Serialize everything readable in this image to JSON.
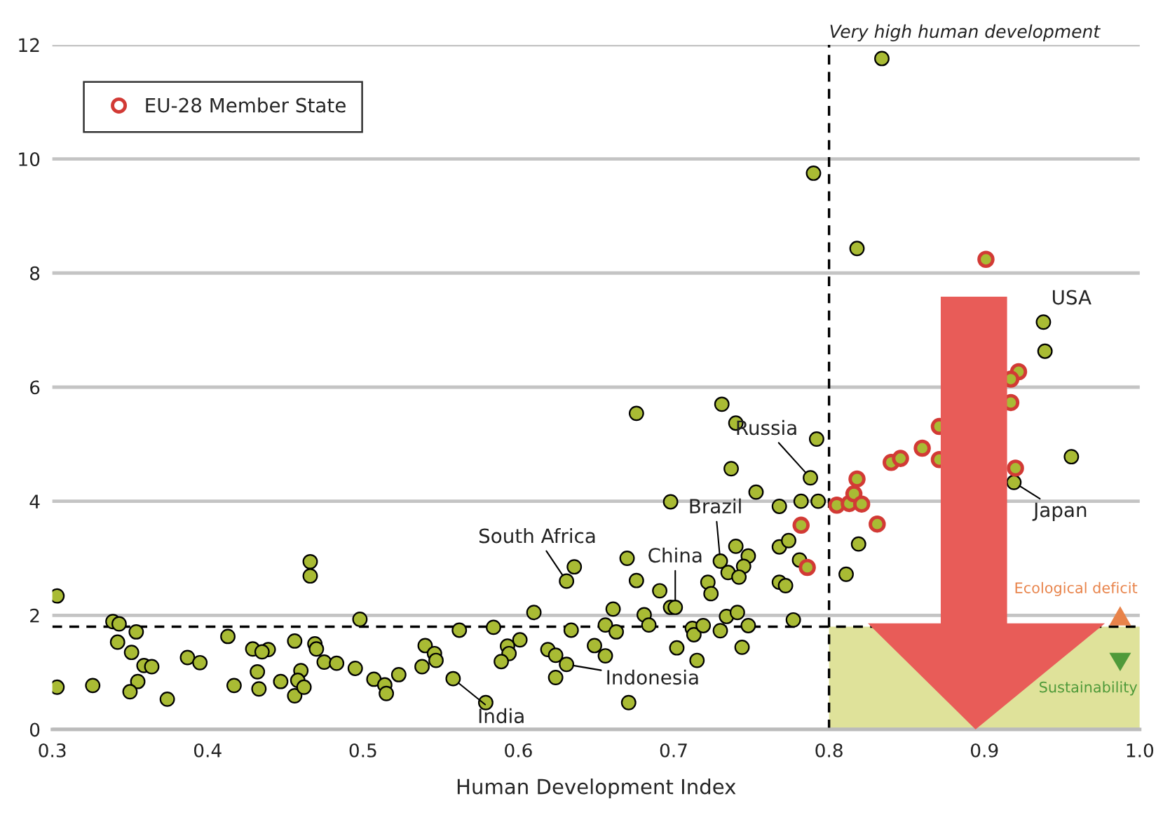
{
  "chart_data": {
    "type": "scatter",
    "xlabel": "Human Development Index",
    "xlim": [
      0.3,
      1.0
    ],
    "xticks": [
      0.3,
      0.4,
      0.5,
      0.6,
      0.7,
      0.8,
      0.9,
      {
        "value": 1.0,
        "label": "1.0"
      }
    ],
    "ylim": [
      0,
      12
    ],
    "yticks": [
      0,
      2,
      4,
      6,
      8,
      10,
      12
    ],
    "grid": "y",
    "legend": "top left",
    "marker": "circle",
    "series": [
      {
        "color": "#a9bb34",
        "x": [
          0.303,
          0.303,
          0.326,
          0.339,
          0.343,
          0.342,
          0.354,
          0.351,
          0.355,
          0.35,
          0.359,
          0.364,
          0.374,
          0.387,
          0.395,
          0.413,
          0.417,
          0.429,
          0.439,
          0.435,
          0.432,
          0.433,
          0.447,
          0.456,
          0.456,
          0.46,
          0.458,
          0.462,
          0.466,
          0.466,
          0.469,
          0.47,
          0.475,
          0.483,
          0.495,
          0.498,
          0.507,
          0.514,
          0.515,
          0.523,
          0.676,
          0.731,
          0.74,
          0.737,
          0.753,
          0.698,
          0.768,
          0.74,
          0.748,
          0.73,
          0.745,
          0.735,
          0.742,
          0.768,
          0.774,
          0.768,
          0.772,
          0.722,
          0.724,
          0.67,
          0.676,
          0.691,
          0.698,
          0.701,
          0.636,
          0.631,
          0.61,
          0.661,
          0.681,
          0.684,
          0.656,
          0.663,
          0.634,
          0.584,
          0.562,
          0.712,
          0.713,
          0.719,
          0.73,
          0.734,
          0.741,
          0.748,
          0.744,
          0.777,
          0.702,
          0.715,
          0.649,
          0.656,
          0.619,
          0.624,
          0.631,
          0.624,
          0.671,
          0.601,
          0.593,
          0.594,
          0.589,
          0.579,
          0.558,
          0.54,
          0.546,
          0.547,
          0.538,
          0.792,
          0.788,
          0.782,
          0.793,
          0.781,
          0.819,
          0.811,
          0.919,
          0.956,
          0.834,
          0.79,
          0.818,
          0.938,
          0.939
        ],
        "values": [
          2.34,
          0.74,
          0.77,
          1.89,
          1.85,
          1.53,
          1.71,
          1.35,
          0.84,
          0.66,
          1.12,
          1.1,
          0.53,
          1.26,
          1.17,
          1.63,
          0.77,
          1.41,
          1.4,
          1.36,
          1.01,
          0.71,
          0.84,
          1.55,
          0.59,
          1.03,
          0.86,
          0.74,
          2.94,
          2.69,
          1.5,
          1.41,
          1.18,
          1.16,
          1.07,
          1.93,
          0.88,
          0.78,
          0.63,
          0.96,
          5.54,
          5.7,
          5.37,
          4.57,
          4.16,
          3.99,
          3.91,
          3.21,
          3.04,
          2.95,
          2.86,
          2.75,
          2.67,
          3.2,
          3.31,
          2.58,
          2.52,
          2.58,
          2.38,
          3.0,
          2.61,
          2.43,
          2.14,
          2.14,
          2.85,
          2.6,
          2.05,
          2.11,
          2.01,
          1.83,
          1.83,
          1.71,
          1.74,
          1.79,
          1.74,
          1.77,
          1.66,
          1.82,
          1.73,
          1.98,
          2.05,
          1.82,
          1.44,
          1.92,
          1.43,
          1.21,
          1.47,
          1.29,
          1.4,
          1.3,
          1.14,
          0.91,
          0.47,
          1.57,
          1.46,
          1.33,
          1.19,
          0.47,
          0.89,
          1.47,
          1.33,
          1.21,
          1.1,
          5.09,
          4.41,
          4.0,
          4.0,
          2.97,
          3.25,
          2.72,
          4.33,
          4.78,
          11.76,
          9.75,
          8.43,
          7.14,
          6.63
        ]
      },
      {
        "name": "EU-28 Member State",
        "color": "#d23a35",
        "x": [
          0.782,
          0.786,
          0.805,
          0.813,
          0.816,
          0.818,
          0.821,
          0.831,
          0.84,
          0.846,
          0.86,
          0.871,
          0.871,
          0.92,
          0.917,
          0.901,
          0.922,
          0.917
        ],
        "values": [
          3.58,
          2.84,
          3.93,
          3.96,
          4.13,
          4.39,
          3.95,
          3.6,
          4.68,
          4.75,
          4.93,
          5.31,
          4.73,
          4.58,
          5.73,
          8.24,
          6.27,
          6.14
        ]
      }
    ],
    "ref_lines": [
      {
        "axis": "x",
        "value": 0.8,
        "label": "Very high human development",
        "line_style": "dashed"
      },
      {
        "axis": "y",
        "value": 1.8,
        "line_style": "dashed"
      }
    ],
    "bands": [
      {
        "axis": "y",
        "from": 0,
        "to": 1.8,
        "color": "#dfe29a"
      }
    ],
    "annotations": [
      {
        "text": "Russia",
        "x": 0.788,
        "y": 4.41
      },
      {
        "text": "Brazil",
        "x": 0.73,
        "y": 2.95
      },
      {
        "text": "China",
        "x": 0.701,
        "y": 2.14
      },
      {
        "text": "South Africa",
        "x": 0.631,
        "y": 2.6
      },
      {
        "text": "Indonesia",
        "x": 0.631,
        "y": 1.14
      },
      {
        "text": "India",
        "x": 0.558,
        "y": 0.89
      },
      {
        "text": "USA",
        "x": 0.938,
        "y": 7.14
      },
      {
        "text": "Japan",
        "x": 0.919,
        "y": 4.33
      },
      "Ecological deficit",
      "Sustainability"
    ]
  }
}
